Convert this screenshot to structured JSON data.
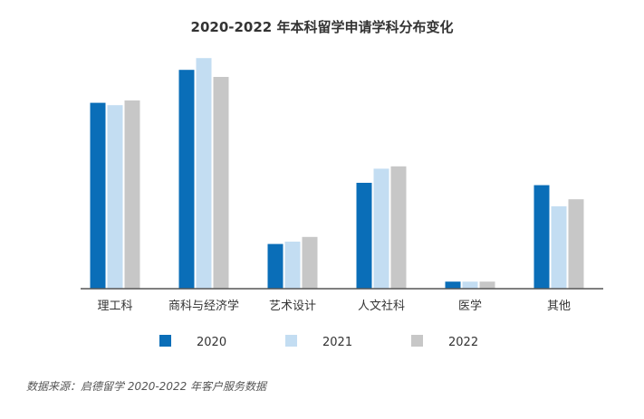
{
  "title": "2020-2022 年本科留学申请学科分布变化",
  "source_note": "数据来源：启德留学 2020-2022 年客户服务数据",
  "colors": {
    "2020": "#0a6eb8",
    "2021": "#c3ddf2",
    "2022": "#c7c7c7",
    "axis": "#555555",
    "text": "#333333"
  },
  "chart_data": {
    "type": "bar",
    "title": "2020-2022 年本科留学申请学科分布变化",
    "xlabel": "",
    "ylabel": "",
    "ylim": [
      0,
      100
    ],
    "grid": false,
    "legend_position": "bottom",
    "categories": [
      "理工科",
      "商科与经济学",
      "艺术设计",
      "人文社科",
      "医学",
      "其他"
    ],
    "series": [
      {
        "name": "2020",
        "values": [
          79,
          93,
          19,
          45,
          3,
          44
        ]
      },
      {
        "name": "2021",
        "values": [
          78,
          98,
          20,
          51,
          3,
          35
        ]
      },
      {
        "name": "2022",
        "values": [
          80,
          90,
          22,
          52,
          3,
          38
        ]
      }
    ]
  }
}
